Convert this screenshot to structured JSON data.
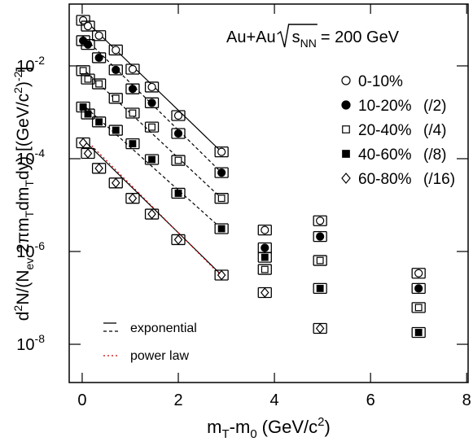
{
  "chart_data": {
    "type": "scatter",
    "annotation": {
      "text": "Au+Au",
      "sqrt_var": "s",
      "sqrt_sub": "NN",
      "rest": "= 200 GeV"
    },
    "xlabel": {
      "main": "m",
      "sub1": "T",
      "mid": "-m",
      "sub2": "0",
      "unit": "(GeV/c",
      "unit_sup": "2",
      "close": ")"
    },
    "ylabel_parts": [
      {
        "t": "d"
      },
      {
        "t": "2",
        "s": "sup"
      },
      {
        "t": "N/(N"
      },
      {
        "t": "ev",
        "s": "sub"
      },
      {
        "t": " 2πm"
      },
      {
        "t": "T",
        "s": "sub"
      },
      {
        "t": "dm"
      },
      {
        "t": "T",
        "s": "sub"
      },
      {
        "t": "dy) [(GeV/c"
      },
      {
        "t": "2",
        "s": "sup"
      },
      {
        "t": ")"
      },
      {
        "t": "-2",
        "s": "sup"
      },
      {
        "t": "]"
      }
    ],
    "x": [
      0.02,
      0.12,
      0.35,
      0.7,
      1.05,
      1.45,
      2.0,
      2.9,
      3.8,
      4.95,
      7.0
    ],
    "xlim": [
      -0.27,
      8.03
    ],
    "xticks": [
      0,
      2,
      4,
      6,
      8
    ],
    "ylim": [
      1.5e-09,
      0.215
    ],
    "log_y": true,
    "yticks": [
      {
        "value": 1e-08,
        "label": "10",
        "exponent": "-8"
      },
      {
        "value": 1e-06,
        "label": "10",
        "exponent": "-6"
      },
      {
        "value": 0.0001,
        "label": "10",
        "exponent": "-4"
      },
      {
        "value": 0.01,
        "label": "10",
        "exponent": "-2"
      }
    ],
    "legend": "upper right",
    "series": [
      {
        "name": "0-10%",
        "scale_label": null,
        "marker": "circle",
        "filled": false,
        "color": "#000000",
        "values": [
          0.096,
          0.072,
          0.045,
          0.022,
          0.0085,
          0.0035,
          0.00085,
          0.00014,
          2.9e-06,
          4.6e-06,
          3.4e-07
        ],
        "fit": {
          "style": "solid",
          "x": [
            0,
            2.9
          ],
          "values": [
            0.11,
            0.00014
          ]
        }
      },
      {
        "name": "10-20%",
        "scale_label": "(/2)",
        "marker": "circle",
        "filled": true,
        "color": "#000000",
        "values": [
          0.035,
          0.029,
          0.015,
          0.0082,
          0.0032,
          0.0016,
          0.00035,
          5e-05,
          1.2e-06,
          2.1e-06,
          1.6e-07
        ],
        "fit": {
          "style": "dashed",
          "x": [
            0,
            2.9
          ],
          "values": [
            0.045,
            5e-05
          ]
        }
      },
      {
        "name": "20-40%",
        "scale_label": "(/4)",
        "marker": "square",
        "filled": false,
        "color": "#000000",
        "values": [
          0.0079,
          0.0052,
          0.0041,
          0.002,
          0.00096,
          0.00048,
          9.2e-05,
          1.4e-05,
          4.1e-07,
          6.4e-07,
          6.2e-08
        ],
        "fit": {
          "style": "dashed",
          "x": [
            0,
            2.9
          ],
          "values": [
            0.0089,
            1.4e-05
          ]
        }
      },
      {
        "name": "40-60%",
        "scale_label": "(/8)",
        "marker": "square",
        "filled": true,
        "color": "#000000",
        "values": [
          0.0013,
          0.00092,
          0.00062,
          0.00041,
          0.00021,
          9.6e-05,
          1.8e-05,
          3.1e-06,
          7.5e-07,
          1.6e-07,
          1.8e-08
        ],
        "fit": {
          "style": "dashed",
          "x": [
            0,
            2.9
          ],
          "values": [
            0.0015,
            3.1e-06
          ]
        }
      },
      {
        "name": "60-80%",
        "scale_label": "(/16)",
        "marker": "diamond",
        "filled": false,
        "color": "#000000",
        "values": [
          0.00022,
          0.00013,
          6.2e-05,
          3e-05,
          1.4e-05,
          6.4e-06,
          1.8e-06,
          3.1e-07,
          1.3e-07,
          2.2e-08,
          null
        ],
        "fit": {
          "style": "solid",
          "x": [
            0,
            2.9
          ],
          "values": [
            0.00027,
            3.1e-07
          ]
        }
      }
    ],
    "power_law_fit": {
      "color": "#cc0000",
      "x": [
        0.2,
        2.95
      ],
      "values": [
        0.00019,
        2.6e-07
      ]
    },
    "fit_legend": {
      "exponential": "exponential",
      "power_law": "power law"
    }
  }
}
